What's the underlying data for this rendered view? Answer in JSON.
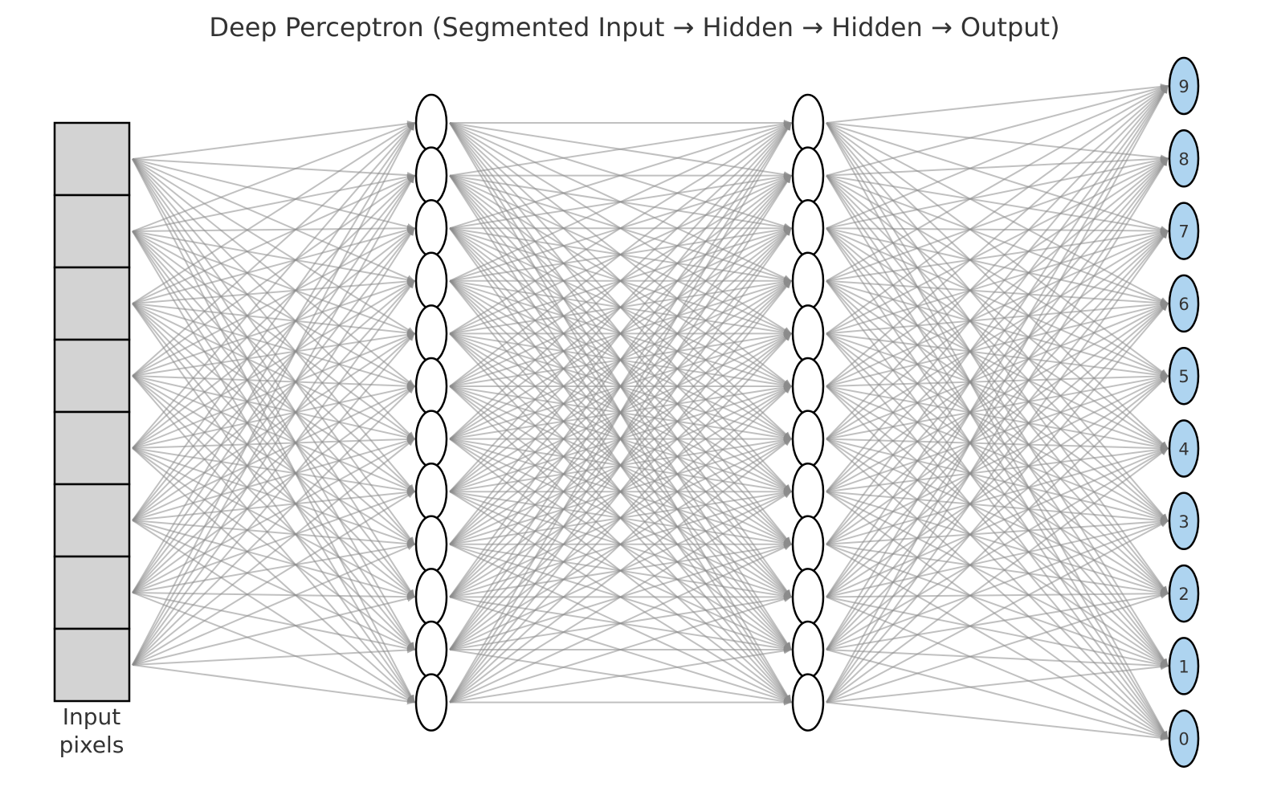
{
  "title": "Deep Perceptron (Segmented Input → Hidden → Hidden → Output)",
  "input": {
    "label_line1": "Input",
    "label_line2": "pixels",
    "segment_count": 8,
    "fill_color": "#d3d3d3"
  },
  "hidden_layers": [
    {
      "neuron_count": 12,
      "fill_color": "#ffffff"
    },
    {
      "neuron_count": 12,
      "fill_color": "#ffffff"
    }
  ],
  "output": {
    "fill_color": "#aed4f0",
    "labels": [
      "9",
      "8",
      "7",
      "6",
      "5",
      "4",
      "3",
      "2",
      "1",
      "0"
    ]
  },
  "connection_color": "#8c8c8c",
  "outline_color": "#000000"
}
